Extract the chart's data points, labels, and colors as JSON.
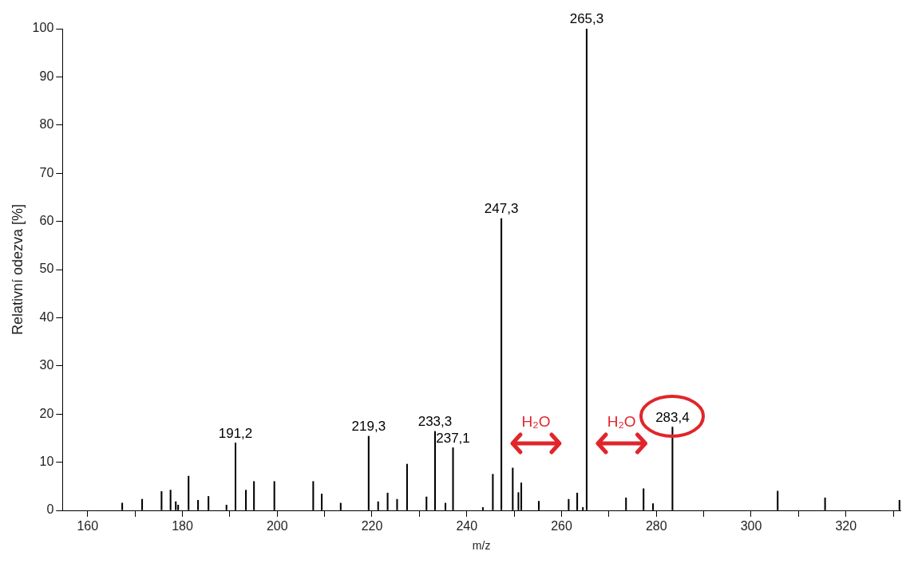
{
  "chart_data": {
    "type": "bar",
    "xlabel": "m/z",
    "ylabel": "Relativní odezva [%]",
    "x": [
      167.3,
      171.5,
      175.6,
      177.5,
      178.6,
      179.1,
      181.3,
      183.3,
      185.5,
      189.3,
      191.2,
      193.4,
      195.1,
      199.4,
      207.6,
      209.4,
      213.4,
      219.3,
      221.3,
      223.3,
      225.3,
      227.4,
      231.5,
      233.3,
      235.5,
      237.1,
      243.4,
      245.5,
      247.3,
      249.7,
      250.9,
      251.5,
      255.2,
      261.5,
      263.3,
      264.5,
      265.3,
      273.6,
      277.3,
      279.3,
      283.4,
      305.6,
      315.6,
      331.3
    ],
    "values": [
      1.5,
      2.3,
      3.9,
      4.2,
      1.8,
      1.1,
      7.1,
      2.1,
      2.9,
      1.1,
      14.0,
      4.2,
      6.0,
      6.0,
      6.0,
      3.4,
      1.5,
      15.4,
      1.8,
      3.6,
      2.3,
      9.6,
      2.8,
      16.4,
      1.5,
      13.0,
      0.6,
      7.5,
      60.6,
      8.8,
      3.7,
      5.7,
      1.9,
      2.3,
      3.6,
      0.6,
      100,
      2.6,
      4.5,
      1.4,
      17.3,
      4.0,
      2.6,
      2.1
    ],
    "color": "#000000",
    "xlim": [
      154.7,
      331.5
    ],
    "xticks": [
      160,
      {
        "value": 170,
        "label": null
      },
      180,
      {
        "value": 190,
        "label": null
      },
      200,
      {
        "value": 210,
        "label": null
      },
      220,
      {
        "value": 230,
        "label": null
      },
      240,
      {
        "value": 250,
        "label": null
      },
      260,
      {
        "value": 270,
        "label": null
      },
      280,
      {
        "value": 290,
        "label": null
      },
      300,
      {
        "value": 310,
        "label": null
      },
      320,
      {
        "value": 330,
        "label": null
      }
    ],
    "ylim": [
      0,
      100
    ],
    "yticks": [
      0,
      10,
      20,
      30,
      40,
      50,
      60,
      70,
      80,
      90,
      100
    ],
    "grid": false,
    "legend": false,
    "annotations": [
      {
        "text": "191,2",
        "x": 191.2,
        "y": 14.0
      },
      {
        "text": "219,3",
        "x": 219.3,
        "y": 15.4
      },
      {
        "text": "233,3",
        "x": 233.3,
        "y": 16.4
      },
      {
        "text": "237,1",
        "x": 237.1,
        "y": 13.0
      },
      {
        "text": "247,3",
        "x": 247.3,
        "y": 60.6
      },
      {
        "text": "265,3",
        "x": 265.3,
        "y": 100
      },
      {
        "text": "283,4",
        "x": 283.4,
        "y": 17.3
      },
      "H₂O",
      "H₂O"
    ]
  }
}
